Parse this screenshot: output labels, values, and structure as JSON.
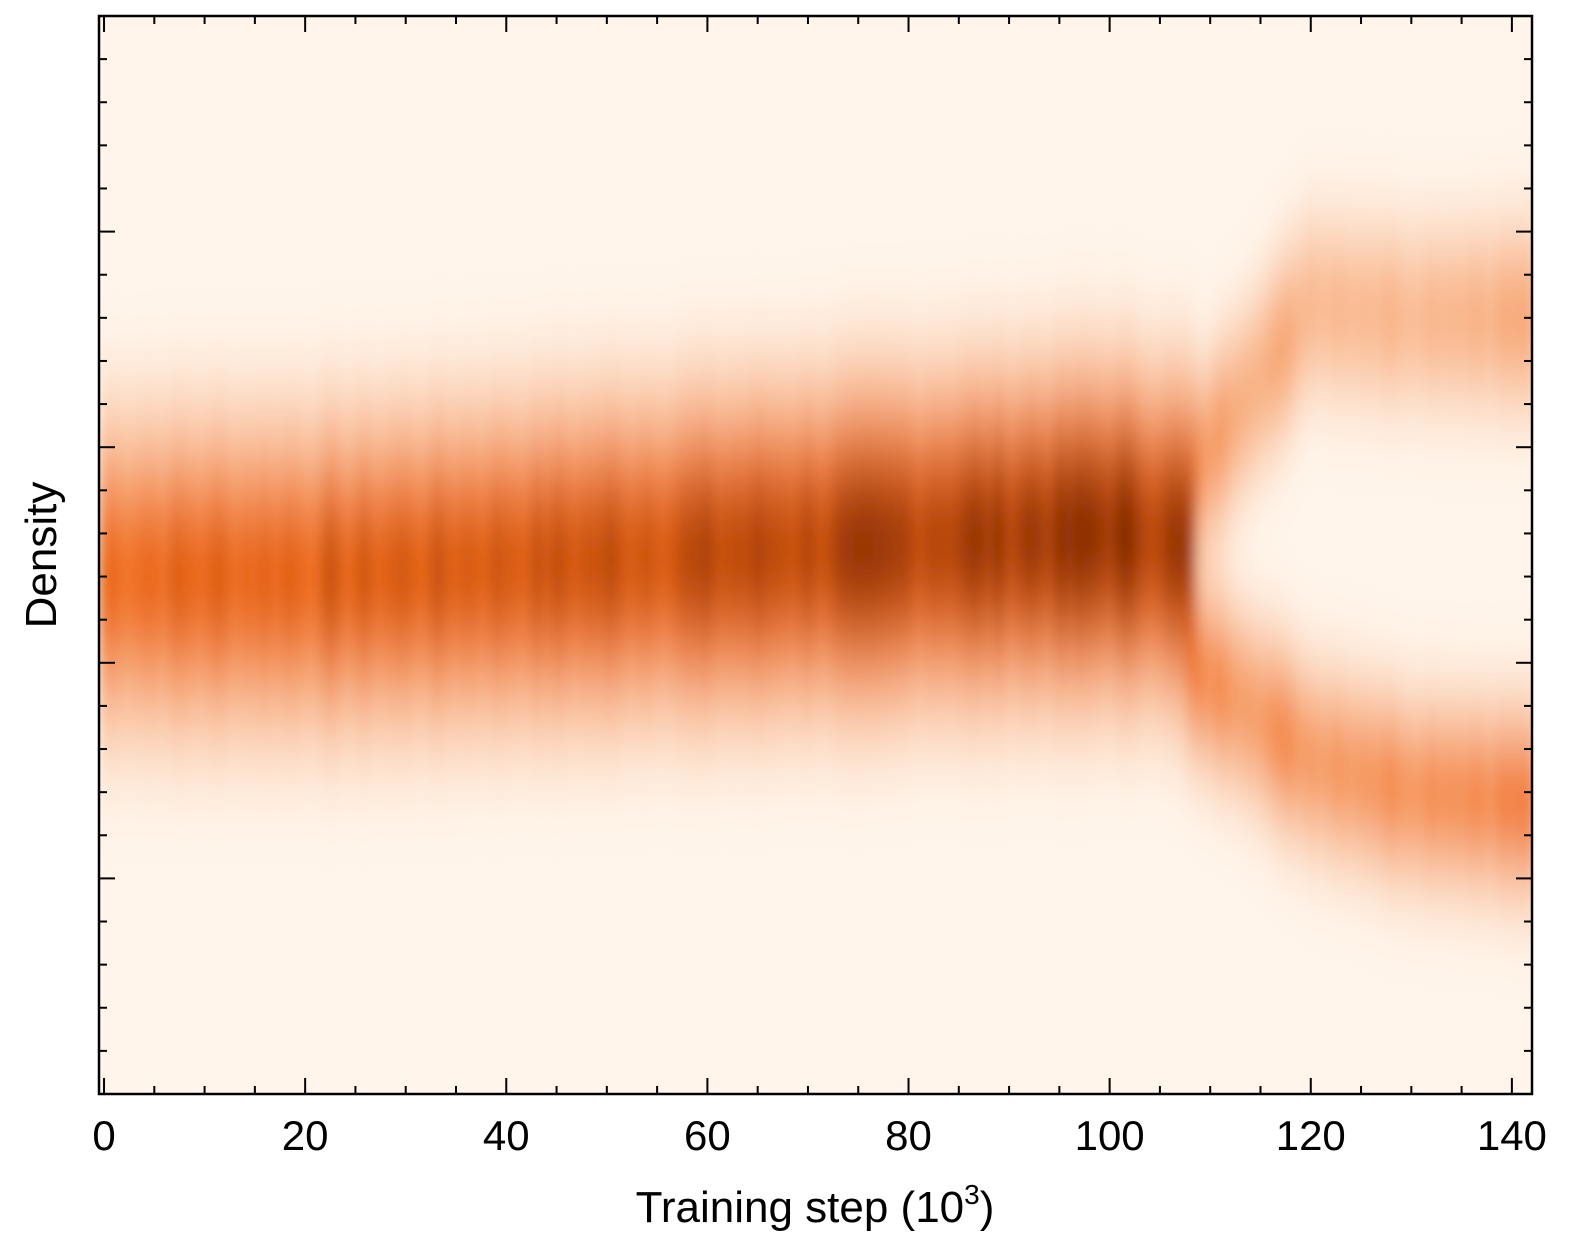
{
  "chart_data": {
    "type": "heatmap",
    "title": "",
    "xlabel": "Training step (10",
    "xlabel_exponent": "3",
    "xlabel_suffix": ")",
    "ylabel": "Density",
    "xlim": [
      -0.5,
      142
    ],
    "x_ticks": [
      0,
      20,
      40,
      60,
      80,
      100,
      120,
      140
    ],
    "x_tick_labels": [
      "0",
      "20",
      "40",
      "60",
      "80",
      "100",
      "120",
      "140"
    ],
    "y_tick_labels": [],
    "grid": false,
    "colormap": "Oranges",
    "colors": {
      "low": "#fff5eb",
      "mid": "#f16913",
      "high": "#7f2704"
    },
    "ridges": [
      {
        "segment": "single-mode",
        "x": [
          0,
          20,
          40,
          60,
          80,
          100,
          108
        ],
        "center": [
          0.52,
          0.52,
          0.51,
          0.5,
          0.49,
          0.48,
          0.49
        ],
        "intensity": [
          0.6,
          0.65,
          0.72,
          0.8,
          0.88,
          1.0,
          0.9
        ]
      },
      {
        "segment": "upper-branch",
        "x": [
          108,
          120,
          130,
          142
        ],
        "center": [
          0.43,
          0.27,
          0.28,
          0.28
        ],
        "intensity": [
          0.45,
          0.3,
          0.3,
          0.35
        ]
      },
      {
        "segment": "lower-branch",
        "x": [
          108,
          120,
          130,
          142
        ],
        "center": [
          0.6,
          0.69,
          0.72,
          0.73
        ],
        "intensity": [
          0.5,
          0.45,
          0.5,
          0.55
        ]
      }
    ]
  }
}
